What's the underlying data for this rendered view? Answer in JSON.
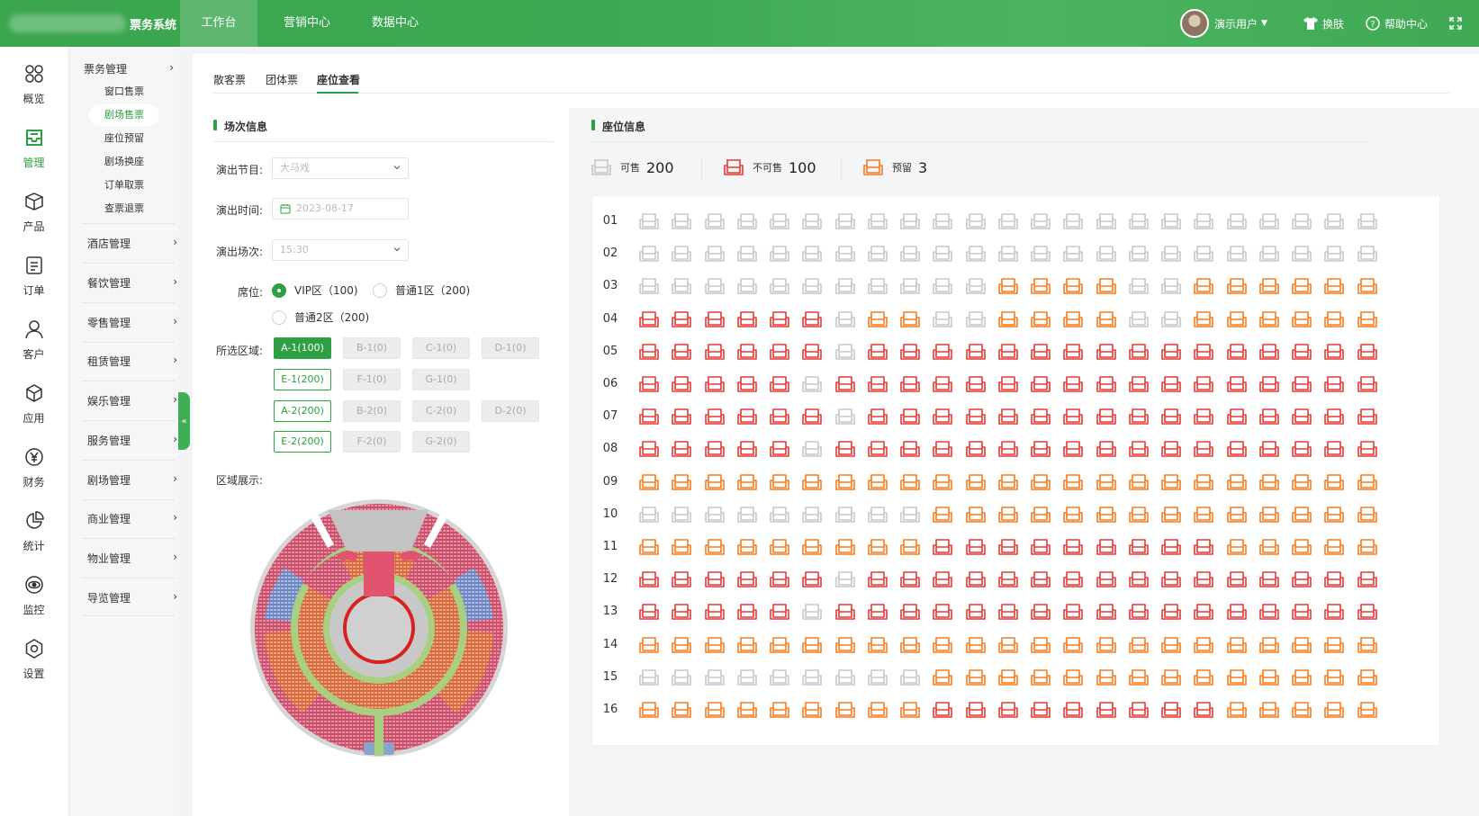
{
  "app": {
    "title": "票务系统",
    "nav_tabs": [
      {
        "label": "工作台",
        "active": true
      },
      {
        "label": "营销中心",
        "active": false
      },
      {
        "label": "数据中心",
        "active": false
      }
    ],
    "user_name": "演示用户",
    "skin_label": "换肤",
    "help_label": "帮助中心",
    "brand_color": "#3aa64e"
  },
  "rail": [
    {
      "label": "概览",
      "icon": "grid-icon"
    },
    {
      "label": "管理",
      "icon": "inbox-icon",
      "active": true
    },
    {
      "label": "产品",
      "icon": "box-icon"
    },
    {
      "label": "订单",
      "icon": "list-icon"
    },
    {
      "label": "客户",
      "icon": "user-icon"
    },
    {
      "label": "应用",
      "icon": "cube-icon"
    },
    {
      "label": "财务",
      "icon": "yuan-icon"
    },
    {
      "label": "统计",
      "icon": "pie-icon"
    },
    {
      "label": "监控",
      "icon": "eye-icon"
    },
    {
      "label": "设置",
      "icon": "gear-icon"
    }
  ],
  "submenu": {
    "group_title": "票务管理",
    "items": [
      "窗口售票",
      "剧场售票",
      "座位预留",
      "剧场换座",
      "订单取票",
      "查票退票"
    ],
    "active_item": "剧场售票",
    "groups": [
      "酒店管理",
      "餐饮管理",
      "零售管理",
      "租赁管理",
      "娱乐管理",
      "服务管理",
      "剧场管理",
      "商业管理",
      "物业管理",
      "导览管理"
    ]
  },
  "tabs": [
    "散客票",
    "团体票",
    "座位查看"
  ],
  "active_tab": "座位查看",
  "session": {
    "title": "场次信息",
    "program_label": "演出节目:",
    "program_value": "大马戏",
    "date_label": "演出时间:",
    "date_value": "2023-08-17",
    "time_label": "演出场次:",
    "time_value": "15:30",
    "seat_label": "席位:",
    "seat_options": [
      {
        "label": "VIP区（100)",
        "checked": true
      },
      {
        "label": "普通1区（200)",
        "checked": false
      },
      {
        "label": "普通2区（200)",
        "checked": false
      }
    ],
    "zone_label": "所选区域:",
    "zones": [
      {
        "label": "A-1(100)",
        "state": "selected"
      },
      {
        "label": "B-1(0)",
        "state": "disabled"
      },
      {
        "label": "C-1(0)",
        "state": "disabled"
      },
      {
        "label": "D-1(0)",
        "state": "disabled"
      },
      {
        "label": "E-1(200)",
        "state": "available"
      },
      {
        "label": "F-1(0)",
        "state": "disabled"
      },
      {
        "label": "G-1(0)",
        "state": "disabled"
      },
      {
        "label": "A-2(200)",
        "state": "available"
      },
      {
        "label": "B-2(0)",
        "state": "disabled"
      },
      {
        "label": "C-2(0)",
        "state": "disabled"
      },
      {
        "label": "D-2(0)",
        "state": "disabled"
      },
      {
        "label": "E-2(200)",
        "state": "available"
      },
      {
        "label": "F-2(0)",
        "state": "disabled"
      },
      {
        "label": "G-2(0)",
        "state": "disabled"
      }
    ],
    "area_label": "区域展示:"
  },
  "seat_info": {
    "title": "座位信息",
    "legend": [
      {
        "label": "可售",
        "count": "200",
        "color": "#c8c8c8"
      },
      {
        "label": "不可售",
        "count": "100",
        "color": "#e53935"
      },
      {
        "label": "预留",
        "count": "3",
        "color": "#f57c1f"
      }
    ],
    "rows": [
      "01",
      "02",
      "03",
      "04",
      "05",
      "06",
      "07",
      "08",
      "09",
      "10",
      "11",
      "12",
      "13",
      "14",
      "15",
      "16"
    ],
    "seat_map": [
      "AAAAAAAAAAAAAAAAAAAAAAA",
      "AAAAAAAAAAAAAAAAAAAAAAA",
      "AAAAAAAAAAARRRRAARRRRRR",
      "UUUUUUARRAARRRRAARRRRRR",
      "UUUUUUAUUUUUUUUUUUUUUUU",
      "UUUUUAUUUUUUUUUUUUUUUUU",
      "UUUUUUAUUUUUUUUUUUUUUUU",
      "UUUUUAUUUUUUUUUUUUUUUUU",
      "RRRRRRRRRRRRRRRRRRRRRRR",
      "AAAAAAAAARRRRRRRRRRRRRR",
      "RRRRRRRRRUUUUUUUUURRRRR",
      "UUUUUUAUUUUUUUUUUUUUUUU",
      "UUUUUAUUUUUUUUUUUUUUUUU",
      "RRRRRRRRRRRRRRRRRRRRRRR",
      "AAAAAAAAARRRRRRRRRRRRRR",
      "RRRRRRRRRUUUUUUUUURRRRR"
    ]
  }
}
